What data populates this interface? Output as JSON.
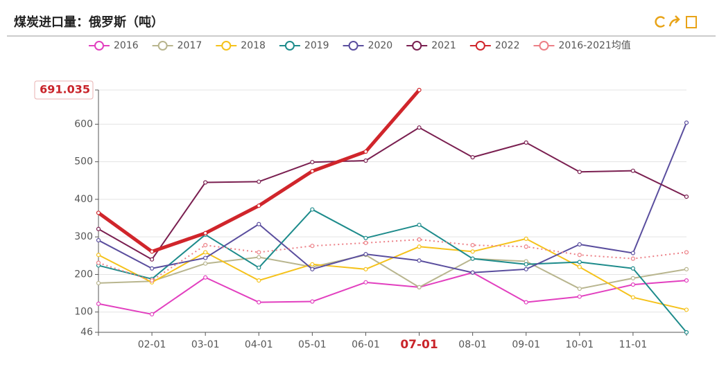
{
  "chart_data": {
    "type": "line",
    "title": "煤炭进口量：俄罗斯（吨）",
    "categories": [
      null,
      "02-01",
      "03-01",
      "04-01",
      "05-01",
      "06-01",
      "07-01",
      "08-01",
      "09-01",
      "10-01",
      "11-01",
      null
    ],
    "ylim": [
      46,
      691.035
    ],
    "yticks": [
      46,
      100,
      200,
      300,
      400,
      500,
      600,
      691.035
    ],
    "grid": true,
    "legend": "top",
    "series": [
      {
        "name": "2016",
        "color": "#e23fbf",
        "values": [
          122,
          94,
          192,
          126,
          128,
          179,
          166,
          205,
          126,
          141,
          173,
          184
        ]
      },
      {
        "name": "2017",
        "color": "#b8b58e",
        "values": [
          177,
          182,
          229,
          246,
          220,
          252,
          166,
          242,
          235,
          162,
          190,
          214
        ]
      },
      {
        "name": "2018",
        "color": "#f5c21b",
        "values": [
          252,
          179,
          259,
          184,
          227,
          214,
          274,
          261,
          295,
          220,
          139,
          106
        ]
      },
      {
        "name": "2019",
        "color": "#1d8b8b",
        "values": [
          224,
          188,
          306,
          218,
          373,
          297,
          332,
          242,
          227,
          233,
          216,
          46
        ]
      },
      {
        "name": "2020",
        "color": "#5a4e9e",
        "values": [
          291,
          216,
          244,
          334,
          214,
          254,
          237,
          205,
          214,
          280,
          257,
          604
        ]
      },
      {
        "name": "2021",
        "color": "#7a1f50",
        "values": [
          321,
          240,
          445,
          447,
          499,
          503,
          591,
          512,
          551,
          473,
          476,
          407
        ]
      },
      {
        "name": "2022",
        "color": "#d0252b",
        "values": [
          364,
          261,
          310,
          383,
          475,
          527,
          691.035,
          null,
          null,
          null,
          null,
          null
        ]
      },
      {
        "name": "2016-2021均值",
        "color": "#ec7f86",
        "dashed": true,
        "values": [
          231,
          184,
          278,
          259,
          276,
          284,
          293,
          278,
          274,
          252,
          242,
          259
        ]
      }
    ]
  }
}
